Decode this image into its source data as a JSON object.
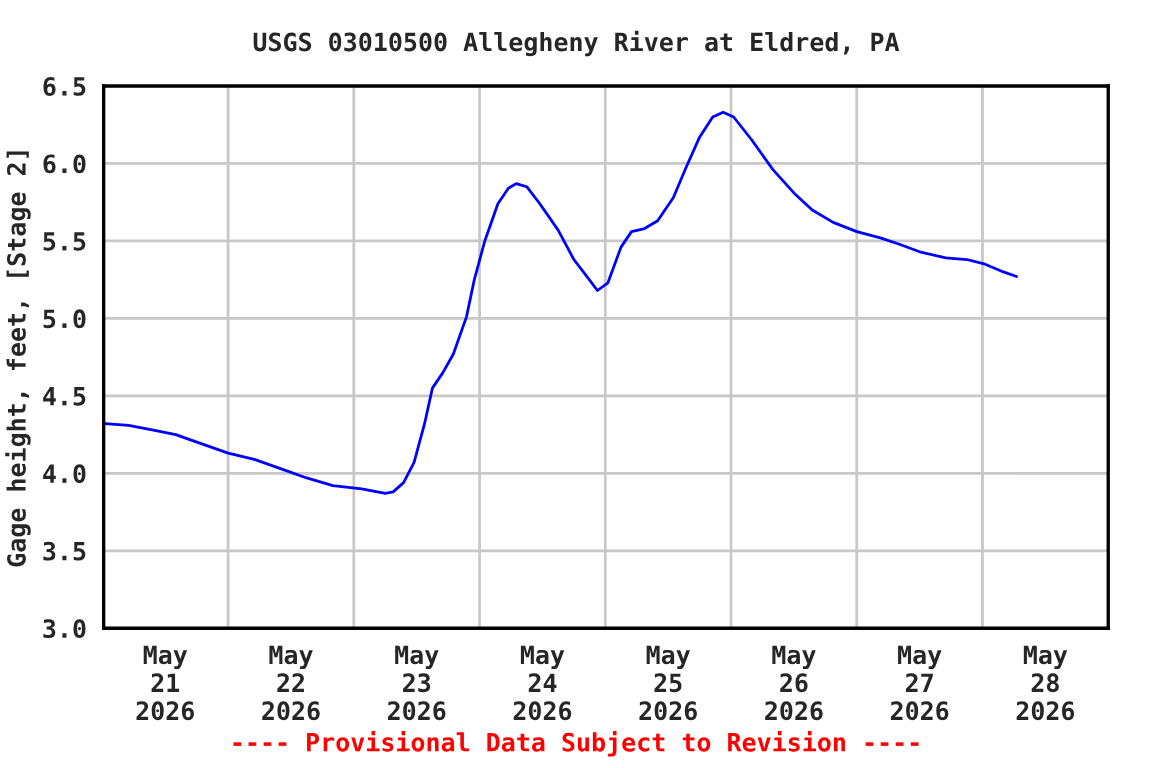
{
  "chart_data": {
    "type": "line",
    "title": "USGS 03010500 Allegheny River at Eldred, PA",
    "ylabel": "Gage height, feet, [Stage 2]",
    "annotations": [
      "---- Provisional Data Subject to Revision ----"
    ],
    "x": [
      "2026-05-20T12:30",
      "2026-05-20T17:00",
      "2026-05-20T21:30",
      "2026-05-21T02:00",
      "2026-05-21T07:00",
      "2026-05-21T12:00",
      "2026-05-21T17:00",
      "2026-05-21T22:00",
      "2026-05-22T03:00",
      "2026-05-22T08:00",
      "2026-05-22T13:30",
      "2026-05-22T18:00",
      "2026-05-22T19:30",
      "2026-05-22T21:30",
      "2026-05-22T23:30",
      "2026-05-23T01:30",
      "2026-05-23T03:00",
      "2026-05-23T05:00",
      "2026-05-23T07:00",
      "2026-05-23T09:30",
      "2026-05-23T11:00",
      "2026-05-23T13:00",
      "2026-05-23T15:30",
      "2026-05-23T17:30",
      "2026-05-23T19:00",
      "2026-05-23T21:00",
      "2026-05-23T23:30",
      "2026-05-24T03:00",
      "2026-05-24T06:00",
      "2026-05-24T08:30",
      "2026-05-24T10:30",
      "2026-05-24T12:30",
      "2026-05-24T15:00",
      "2026-05-24T17:00",
      "2026-05-24T19:30",
      "2026-05-24T22:00",
      "2026-05-25T01:00",
      "2026-05-25T03:30",
      "2026-05-25T06:00",
      "2026-05-25T08:30",
      "2026-05-25T10:30",
      "2026-05-25T12:30",
      "2026-05-25T16:00",
      "2026-05-25T20:00",
      "2026-05-26T00:00",
      "2026-05-26T03:30",
      "2026-05-26T07:30",
      "2026-05-26T12:00",
      "2026-05-26T16:30",
      "2026-05-26T20:00",
      "2026-05-27T00:00",
      "2026-05-27T05:00",
      "2026-05-27T09:00",
      "2026-05-27T12:30",
      "2026-05-27T16:00",
      "2026-05-27T18:30"
    ],
    "series": [
      {
        "color": "#0000ff",
        "values": [
          4.32,
          4.31,
          4.28,
          4.25,
          4.19,
          4.13,
          4.09,
          4.03,
          3.97,
          3.92,
          3.9,
          3.87,
          3.88,
          3.94,
          4.07,
          4.32,
          4.55,
          4.65,
          4.77,
          5.01,
          5.25,
          5.5,
          5.74,
          5.84,
          5.87,
          5.85,
          5.74,
          5.57,
          5.38,
          5.27,
          5.18,
          5.23,
          5.46,
          5.56,
          5.58,
          5.63,
          5.78,
          5.98,
          6.17,
          6.3,
          6.33,
          6.3,
          6.15,
          5.96,
          5.81,
          5.7,
          5.62,
          5.56,
          5.52,
          5.48,
          5.43,
          5.39,
          5.38,
          5.35,
          5.3,
          5.27
        ]
      }
    ],
    "xlim": [
      "2026-05-20T12:15",
      "2026-05-28T12:00"
    ],
    "xticks": [
      {
        "value": "2026-05-21T00:00",
        "label": "May\n21\n2026"
      },
      {
        "value": "2026-05-22T00:00",
        "label": "May\n22\n2026"
      },
      {
        "value": "2026-05-23T00:00",
        "label": "May\n23\n2026"
      },
      {
        "value": "2026-05-24T00:00",
        "label": "May\n24\n2026"
      },
      {
        "value": "2026-05-25T00:00",
        "label": "May\n25\n2026"
      },
      {
        "value": "2026-05-26T00:00",
        "label": "May\n26\n2026"
      },
      {
        "value": "2026-05-27T00:00",
        "label": "May\n27\n2026"
      },
      {
        "value": "2026-05-28T00:00",
        "label": "May\n28\n2026"
      },
      {
        "value": "2026-05-21T12:00",
        "label": null
      },
      {
        "value": "2026-05-22T12:00",
        "label": null
      },
      {
        "value": "2026-05-23T12:00",
        "label": null
      },
      {
        "value": "2026-05-24T12:00",
        "label": null
      },
      {
        "value": "2026-05-25T12:00",
        "label": null
      },
      {
        "value": "2026-05-26T12:00",
        "label": null
      },
      {
        "value": "2026-05-27T12:00",
        "label": null
      }
    ],
    "ylim": [
      3.0,
      6.5
    ],
    "yticks": [
      {
        "value": 3.0,
        "label": "3.0"
      },
      {
        "value": 3.5,
        "label": "3.5"
      },
      {
        "value": 4.0,
        "label": "4.0"
      },
      {
        "value": 4.5,
        "label": "4.5"
      },
      {
        "value": 5.0,
        "label": "5.0"
      },
      {
        "value": 5.5,
        "label": "5.5"
      },
      {
        "value": 6.0,
        "label": "6.0"
      },
      {
        "value": 6.5,
        "label": "6.5"
      }
    ],
    "grid": true,
    "legend": false,
    "marker": "none",
    "line_style": "solid"
  }
}
